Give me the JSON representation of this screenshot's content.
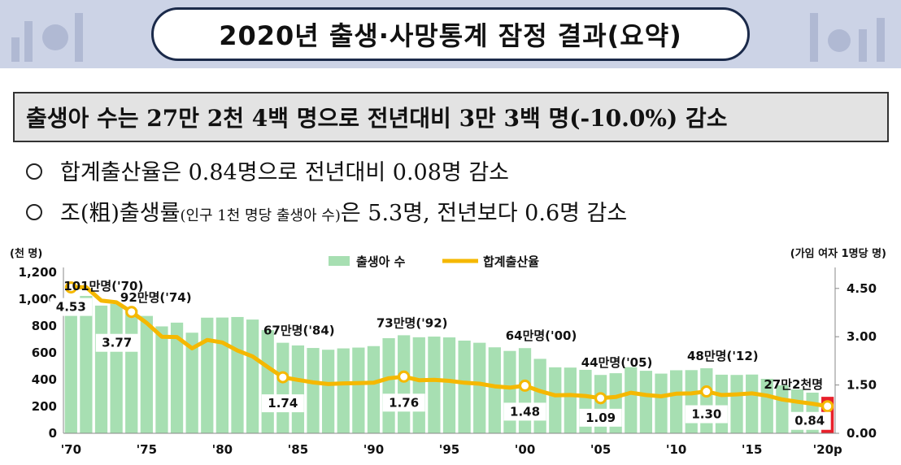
{
  "banner": {
    "title": "2020년 출생·사망통계 잠정 결과(요약)"
  },
  "summary": {
    "text": "출생아 수는 27만 2천 4백 명으로 전년대비 3만 3백 명(-10.0%) 감소"
  },
  "bullets": [
    {
      "main": "합계출산율은 0.84명으로 전년대비 0.08명 감소"
    },
    {
      "pre": "조(粗)출생률",
      "small": "(인구 1천 명당 출생아 수)",
      "post": "은 5.3명, 전년보다 0.6명 감소"
    }
  ],
  "chart_data": {
    "type": "bar",
    "left_unit": "(천 명)",
    "right_unit": "(가임 여자 1명당 명)",
    "legend": [
      "출생아 수",
      "합계출산율"
    ],
    "x": [
      1970,
      1971,
      1972,
      1973,
      1974,
      1975,
      1976,
      1977,
      1978,
      1979,
      1980,
      1981,
      1982,
      1983,
      1984,
      1985,
      1986,
      1987,
      1988,
      1989,
      1990,
      1991,
      1992,
      1993,
      1994,
      1995,
      1996,
      1997,
      1998,
      1999,
      2000,
      2001,
      2002,
      2003,
      2004,
      2005,
      2006,
      2007,
      2008,
      2009,
      2010,
      2011,
      2012,
      2013,
      2014,
      2015,
      2016,
      2017,
      2018,
      2019,
      2020
    ],
    "x_tick_labels": [
      "'70",
      "'75",
      "'80",
      "'85",
      "'90",
      "'95",
      "'00",
      "'05",
      "'10",
      "'15",
      "'20p"
    ],
    "left_axis": {
      "ylim": [
        0,
        1200
      ],
      "ticks": [
        "0",
        "200",
        "400",
        "600",
        "800",
        "1,000",
        "1,200"
      ]
    },
    "right_axis": {
      "ylim": [
        0,
        5
      ],
      "ticks": [
        "0.00",
        "1.50",
        "3.00",
        "4.50"
      ]
    },
    "series": [
      {
        "name": "출생아 수",
        "axis": "left",
        "values": [
          1007,
          1024,
          952,
          965,
          922,
          875,
          797,
          825,
          750,
          862,
          863,
          867,
          848,
          770,
          675,
          655,
          636,
          623,
          633,
          639,
          650,
          709,
          731,
          716,
          721,
          715,
          691,
          675,
          641,
          614,
          635,
          555,
          492,
          490,
          473,
          435,
          448,
          493,
          466,
          445,
          470,
          471,
          485,
          437,
          435,
          438,
          406,
          358,
          327,
          303,
          272
        ]
      },
      {
        "name": "합계출산율",
        "axis": "right",
        "values": [
          4.53,
          4.54,
          4.12,
          4.07,
          3.77,
          3.43,
          3.0,
          2.99,
          2.64,
          2.9,
          2.82,
          2.57,
          2.39,
          2.06,
          1.74,
          1.66,
          1.58,
          1.53,
          1.55,
          1.56,
          1.57,
          1.71,
          1.76,
          1.65,
          1.66,
          1.63,
          1.57,
          1.54,
          1.46,
          1.42,
          1.48,
          1.31,
          1.18,
          1.19,
          1.16,
          1.09,
          1.13,
          1.26,
          1.19,
          1.15,
          1.23,
          1.24,
          1.3,
          1.19,
          1.21,
          1.24,
          1.17,
          1.05,
          0.98,
          0.92,
          0.84
        ]
      }
    ],
    "birth_annotations": [
      {
        "year": 1970,
        "text": "101만명('70)"
      },
      {
        "year": 1974,
        "text": "92만명('74)"
      },
      {
        "year": 1984,
        "text": "67만명('84)"
      },
      {
        "year": 1992,
        "text": "73만명('92)"
      },
      {
        "year": 2000,
        "text": "64만명('00)"
      },
      {
        "year": 2005,
        "text": "44만명('05)"
      },
      {
        "year": 2012,
        "text": "48만명('12)"
      },
      {
        "year": 2020,
        "text": "27만2천명"
      }
    ],
    "tfr_labels": [
      {
        "year": 1970,
        "text": "4.53"
      },
      {
        "year": 1974,
        "text": "3.77"
      },
      {
        "year": 1984,
        "text": "1.74"
      },
      {
        "year": 1992,
        "text": "1.76"
      },
      {
        "year": 2000,
        "text": "1.48"
      },
      {
        "year": 2005,
        "text": "1.09"
      },
      {
        "year": 2012,
        "text": "1.30"
      },
      {
        "year": 2020,
        "text": "0.84"
      }
    ],
    "colors": {
      "bars": "#a7dfb2",
      "bar_highlight": "#e8202a",
      "line": "#f5b800",
      "marker_fill": "#ffffff"
    }
  }
}
